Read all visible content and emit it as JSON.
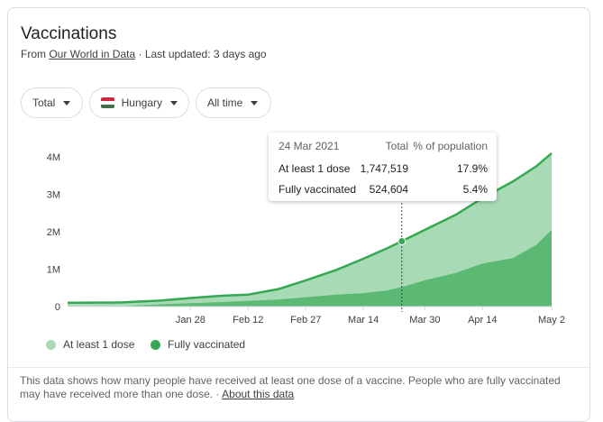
{
  "card": {
    "title": "Vaccinations",
    "source_prefix": "From ",
    "source_name": "Our World in Data",
    "updated": " · Last updated: 3 days ago"
  },
  "filters": {
    "metric": "Total",
    "country": "Hungary",
    "range": "All time"
  },
  "colors": {
    "first_dose_fill": "#a8dab5",
    "first_dose_line": "#34a853",
    "fully_fill": "#5bb974",
    "flag_red": "#cd2a3e",
    "flag_white": "#ffffff",
    "flag_green": "#436f4d"
  },
  "tooltip": {
    "date": "24 Mar 2021",
    "col_total": "Total",
    "col_pct": "% of population",
    "rows": [
      {
        "label": "At least 1 dose",
        "total": "1,747,519",
        "pct": "17.9%"
      },
      {
        "label": "Fully vaccinated",
        "total": "524,604",
        "pct": "5.4%"
      }
    ]
  },
  "legend": {
    "first": "At least 1 dose",
    "full": "Fully vaccinated"
  },
  "footer": {
    "text": "This data shows how many people have received at least one dose of a vaccine. People who are fully vaccinated may have received more than one dose.",
    "sep": " · ",
    "link": "About this data"
  },
  "chart_data": {
    "type": "area",
    "x_ticks": [
      "Jan 28",
      "Feb 12",
      "Feb 27",
      "Mar 14",
      "Mar 30",
      "Apr 14",
      "May 2"
    ],
    "y_ticks": [
      "0",
      "1M",
      "2M",
      "3M",
      "4M"
    ],
    "ylim": [
      0,
      4000000
    ],
    "series": [
      {
        "name": "At least 1 dose",
        "points": [
          [
            "2020-12-27",
            100000
          ],
          [
            "2021-01-10",
            110000
          ],
          [
            "2021-01-20",
            160000
          ],
          [
            "2021-01-28",
            230000
          ],
          [
            "2021-02-05",
            290000
          ],
          [
            "2021-02-12",
            320000
          ],
          [
            "2021-02-20",
            470000
          ],
          [
            "2021-02-27",
            700000
          ],
          [
            "2021-03-07",
            980000
          ],
          [
            "2021-03-14",
            1280000
          ],
          [
            "2021-03-20",
            1550000
          ],
          [
            "2021-03-24",
            1747519
          ],
          [
            "2021-03-30",
            2050000
          ],
          [
            "2021-04-07",
            2450000
          ],
          [
            "2021-04-14",
            2900000
          ],
          [
            "2021-04-22",
            3350000
          ],
          [
            "2021-04-28",
            3750000
          ],
          [
            "2021-05-02",
            4100000
          ]
        ]
      },
      {
        "name": "Fully vaccinated",
        "points": [
          [
            "2020-12-27",
            0
          ],
          [
            "2021-01-10",
            10000
          ],
          [
            "2021-01-20",
            60000
          ],
          [
            "2021-01-28",
            90000
          ],
          [
            "2021-02-05",
            120000
          ],
          [
            "2021-02-12",
            150000
          ],
          [
            "2021-02-20",
            190000
          ],
          [
            "2021-02-27",
            250000
          ],
          [
            "2021-03-07",
            320000
          ],
          [
            "2021-03-14",
            360000
          ],
          [
            "2021-03-20",
            430000
          ],
          [
            "2021-03-24",
            524604
          ],
          [
            "2021-03-30",
            700000
          ],
          [
            "2021-04-07",
            900000
          ],
          [
            "2021-04-14",
            1150000
          ],
          [
            "2021-04-22",
            1300000
          ],
          [
            "2021-04-28",
            1650000
          ],
          [
            "2021-05-02",
            2050000
          ]
        ]
      }
    ],
    "highlight_date": "2021-03-24",
    "grid": false
  }
}
